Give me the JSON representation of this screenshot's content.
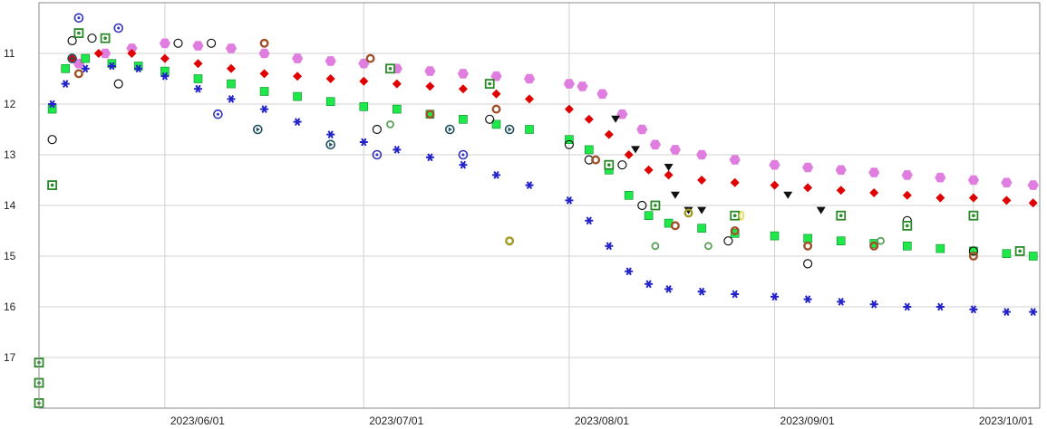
{
  "chart_data": {
    "type": "scatter",
    "xaxis": {
      "type": "date",
      "range": [
        "2023-05-13",
        "2023-10-11"
      ],
      "ticks": [
        "2023-06-01",
        "2023-07-01",
        "2023-08-01",
        "2023-09-01",
        "2023-10-01"
      ],
      "tick_labels": [
        "2023/06/01",
        "2023/07/01",
        "2023/08/01",
        "2023/09/01",
        "2023/10/01"
      ]
    },
    "yaxis": {
      "range": [
        10.0,
        18.0
      ],
      "inverted": true,
      "ticks": [
        11,
        12,
        13,
        14,
        15,
        16,
        17
      ],
      "tick_labels": [
        "11",
        "12",
        "13",
        "14",
        "15",
        "16",
        "17"
      ]
    },
    "grid": true,
    "legend": "none",
    "series": [
      {
        "marker": "hexagon",
        "color": "#e07ee0",
        "points": [
          [
            "2023-05-19",
            11.2
          ],
          [
            "2023-05-23",
            11.0
          ],
          [
            "2023-05-27",
            10.9
          ],
          [
            "2023-06-01",
            10.8
          ],
          [
            "2023-06-06",
            10.85
          ],
          [
            "2023-06-11",
            10.9
          ],
          [
            "2023-06-16",
            11.0
          ],
          [
            "2023-06-21",
            11.1
          ],
          [
            "2023-06-26",
            11.15
          ],
          [
            "2023-07-01",
            11.2
          ],
          [
            "2023-07-06",
            11.3
          ],
          [
            "2023-07-11",
            11.35
          ],
          [
            "2023-07-16",
            11.4
          ],
          [
            "2023-07-21",
            11.45
          ],
          [
            "2023-07-26",
            11.5
          ],
          [
            "2023-08-01",
            11.6
          ],
          [
            "2023-08-03",
            11.65
          ],
          [
            "2023-08-06",
            11.8
          ],
          [
            "2023-08-09",
            12.2
          ],
          [
            "2023-08-12",
            12.5
          ],
          [
            "2023-08-14",
            12.8
          ],
          [
            "2023-08-17",
            12.9
          ],
          [
            "2023-08-21",
            13.0
          ],
          [
            "2023-08-26",
            13.1
          ],
          [
            "2023-09-01",
            13.2
          ],
          [
            "2023-09-06",
            13.25
          ],
          [
            "2023-09-11",
            13.3
          ],
          [
            "2023-09-16",
            13.35
          ],
          [
            "2023-09-21",
            13.4
          ],
          [
            "2023-09-26",
            13.45
          ],
          [
            "2023-10-01",
            13.5
          ],
          [
            "2023-10-06",
            13.55
          ],
          [
            "2023-10-10",
            13.6
          ]
        ]
      },
      {
        "marker": "diamond",
        "color": "#e00000",
        "points": [
          [
            "2023-05-18",
            11.1
          ],
          [
            "2023-05-22",
            11.0
          ],
          [
            "2023-05-27",
            11.0
          ],
          [
            "2023-06-01",
            11.1
          ],
          [
            "2023-06-06",
            11.2
          ],
          [
            "2023-06-11",
            11.3
          ],
          [
            "2023-06-16",
            11.4
          ],
          [
            "2023-06-21",
            11.45
          ],
          [
            "2023-06-26",
            11.5
          ],
          [
            "2023-07-01",
            11.55
          ],
          [
            "2023-07-06",
            11.6
          ],
          [
            "2023-07-11",
            11.65
          ],
          [
            "2023-07-16",
            11.7
          ],
          [
            "2023-07-21",
            11.8
          ],
          [
            "2023-07-26",
            11.9
          ],
          [
            "2023-08-01",
            12.1
          ],
          [
            "2023-08-04",
            12.3
          ],
          [
            "2023-08-07",
            12.6
          ],
          [
            "2023-08-10",
            13.0
          ],
          [
            "2023-08-13",
            13.3
          ],
          [
            "2023-08-16",
            13.4
          ],
          [
            "2023-08-21",
            13.5
          ],
          [
            "2023-08-26",
            13.55
          ],
          [
            "2023-09-01",
            13.6
          ],
          [
            "2023-09-06",
            13.65
          ],
          [
            "2023-09-11",
            13.7
          ],
          [
            "2023-09-16",
            13.75
          ],
          [
            "2023-09-21",
            13.8
          ],
          [
            "2023-09-26",
            13.85
          ],
          [
            "2023-10-01",
            13.85
          ],
          [
            "2023-10-06",
            13.9
          ],
          [
            "2023-10-10",
            13.95
          ]
        ]
      },
      {
        "marker": "square",
        "color": "#1ee84a",
        "points": [
          [
            "2023-05-15",
            12.1
          ],
          [
            "2023-05-17",
            11.3
          ],
          [
            "2023-05-20",
            11.1
          ],
          [
            "2023-05-24",
            11.2
          ],
          [
            "2023-05-28",
            11.25
          ],
          [
            "2023-06-01",
            11.35
          ],
          [
            "2023-06-06",
            11.5
          ],
          [
            "2023-06-11",
            11.6
          ],
          [
            "2023-06-16",
            11.75
          ],
          [
            "2023-06-21",
            11.85
          ],
          [
            "2023-06-26",
            11.95
          ],
          [
            "2023-07-01",
            12.05
          ],
          [
            "2023-07-06",
            12.1
          ],
          [
            "2023-07-11",
            12.2
          ],
          [
            "2023-07-16",
            12.3
          ],
          [
            "2023-07-21",
            12.4
          ],
          [
            "2023-07-26",
            12.5
          ],
          [
            "2023-08-01",
            12.7
          ],
          [
            "2023-08-04",
            12.9
          ],
          [
            "2023-08-07",
            13.3
          ],
          [
            "2023-08-10",
            13.8
          ],
          [
            "2023-08-13",
            14.2
          ],
          [
            "2023-08-16",
            14.35
          ],
          [
            "2023-08-21",
            14.45
          ],
          [
            "2023-08-26",
            14.55
          ],
          [
            "2023-09-01",
            14.6
          ],
          [
            "2023-09-06",
            14.65
          ],
          [
            "2023-09-11",
            14.7
          ],
          [
            "2023-09-16",
            14.75
          ],
          [
            "2023-09-21",
            14.8
          ],
          [
            "2023-09-26",
            14.85
          ],
          [
            "2023-10-01",
            14.9
          ],
          [
            "2023-10-06",
            14.95
          ],
          [
            "2023-10-10",
            15.0
          ]
        ]
      },
      {
        "marker": "asterisk",
        "color": "#2222c8",
        "points": [
          [
            "2023-05-15",
            12.0
          ],
          [
            "2023-05-17",
            11.6
          ],
          [
            "2023-05-20",
            11.3
          ],
          [
            "2023-05-24",
            11.25
          ],
          [
            "2023-05-28",
            11.3
          ],
          [
            "2023-06-01",
            11.45
          ],
          [
            "2023-06-06",
            11.7
          ],
          [
            "2023-06-11",
            11.9
          ],
          [
            "2023-06-16",
            12.1
          ],
          [
            "2023-06-21",
            12.35
          ],
          [
            "2023-06-26",
            12.6
          ],
          [
            "2023-07-01",
            12.75
          ],
          [
            "2023-07-06",
            12.9
          ],
          [
            "2023-07-11",
            13.05
          ],
          [
            "2023-07-16",
            13.2
          ],
          [
            "2023-07-21",
            13.4
          ],
          [
            "2023-07-26",
            13.6
          ],
          [
            "2023-08-01",
            13.9
          ],
          [
            "2023-08-04",
            14.3
          ],
          [
            "2023-08-07",
            14.8
          ],
          [
            "2023-08-10",
            15.3
          ],
          [
            "2023-08-13",
            15.55
          ],
          [
            "2023-08-16",
            15.65
          ],
          [
            "2023-08-21",
            15.7
          ],
          [
            "2023-08-26",
            15.75
          ],
          [
            "2023-09-01",
            15.8
          ],
          [
            "2023-09-06",
            15.85
          ],
          [
            "2023-09-11",
            15.9
          ],
          [
            "2023-09-16",
            15.95
          ],
          [
            "2023-09-21",
            16.0
          ],
          [
            "2023-09-26",
            16.0
          ],
          [
            "2023-10-01",
            16.05
          ],
          [
            "2023-10-06",
            16.1
          ],
          [
            "2023-10-10",
            16.1
          ]
        ]
      },
      {
        "marker": "circle-open",
        "color": "#111111",
        "points": [
          [
            "2023-05-15",
            12.7
          ],
          [
            "2023-05-18",
            10.75
          ],
          [
            "2023-05-21",
            10.7
          ],
          [
            "2023-05-25",
            11.6
          ],
          [
            "2023-06-03",
            10.8
          ],
          [
            "2023-06-08",
            10.8
          ],
          [
            "2023-07-03",
            12.5
          ],
          [
            "2023-07-20",
            12.3
          ],
          [
            "2023-08-01",
            12.8
          ],
          [
            "2023-08-04",
            13.1
          ],
          [
            "2023-08-09",
            13.2
          ],
          [
            "2023-08-12",
            14.0
          ],
          [
            "2023-08-25",
            14.7
          ],
          [
            "2023-09-06",
            15.15
          ],
          [
            "2023-09-21",
            14.3
          ],
          [
            "2023-10-01",
            14.9
          ]
        ]
      },
      {
        "marker": "star-square",
        "color": "#2a8a2a",
        "points": [
          [
            "2023-05-13",
            17.1
          ],
          [
            "2023-05-13",
            17.5
          ],
          [
            "2023-05-13",
            17.9
          ],
          [
            "2023-05-15",
            13.6
          ],
          [
            "2023-05-19",
            10.6
          ],
          [
            "2023-05-23",
            10.7
          ],
          [
            "2023-07-05",
            11.3
          ],
          [
            "2023-07-20",
            11.6
          ],
          [
            "2023-08-07",
            13.2
          ],
          [
            "2023-08-14",
            14.0
          ],
          [
            "2023-08-26",
            14.2
          ],
          [
            "2023-09-11",
            14.2
          ],
          [
            "2023-09-21",
            14.4
          ],
          [
            "2023-10-01",
            14.2
          ],
          [
            "2023-10-08",
            14.9
          ]
        ]
      },
      {
        "marker": "ring",
        "color": "#a0502a",
        "points": [
          [
            "2023-05-19",
            11.4
          ],
          [
            "2023-06-16",
            10.8
          ],
          [
            "2023-07-02",
            11.1
          ],
          [
            "2023-07-11",
            12.2
          ],
          [
            "2023-07-21",
            12.1
          ],
          [
            "2023-08-05",
            13.1
          ],
          [
            "2023-08-17",
            14.4
          ],
          [
            "2023-08-26",
            14.5
          ],
          [
            "2023-09-06",
            14.8
          ],
          [
            "2023-09-16",
            14.8
          ],
          [
            "2023-10-01",
            15.0
          ]
        ]
      },
      {
        "marker": "triangle-down",
        "color": "#111111",
        "points": [
          [
            "2023-08-08",
            12.3
          ],
          [
            "2023-08-11",
            12.9
          ],
          [
            "2023-08-16",
            13.25
          ],
          [
            "2023-08-17",
            13.8
          ],
          [
            "2023-08-19",
            14.1
          ],
          [
            "2023-08-21",
            14.1
          ],
          [
            "2023-09-03",
            13.8
          ],
          [
            "2023-09-08",
            14.1
          ]
        ]
      },
      {
        "marker": "triangle-right",
        "color": "#1f4f5f",
        "points": [
          [
            "2023-05-18",
            11.1
          ],
          [
            "2023-06-15",
            12.5
          ],
          [
            "2023-06-26",
            12.8
          ],
          [
            "2023-07-14",
            12.5
          ],
          [
            "2023-07-23",
            12.5
          ]
        ]
      },
      {
        "marker": "ring-small",
        "color": "#5aa05a",
        "points": [
          [
            "2023-07-05",
            12.4
          ],
          [
            "2023-08-14",
            14.8
          ],
          [
            "2023-08-22",
            14.8
          ],
          [
            "2023-09-17",
            14.7
          ]
        ]
      },
      {
        "marker": "star-circle",
        "color": "#3333bb",
        "points": [
          [
            "2023-05-19",
            10.3
          ],
          [
            "2023-05-25",
            10.5
          ],
          [
            "2023-06-09",
            12.2
          ],
          [
            "2023-07-03",
            13.0
          ],
          [
            "2023-07-16",
            13.0
          ]
        ]
      },
      {
        "marker": "ring",
        "color": "#a09a20",
        "points": [
          [
            "2023-07-23",
            14.7
          ],
          [
            "2023-08-19",
            14.15
          ]
        ]
      },
      {
        "marker": "ellipse",
        "color": "#e6d53a",
        "points": [
          [
            "2023-08-27",
            14.2
          ]
        ]
      }
    ]
  }
}
